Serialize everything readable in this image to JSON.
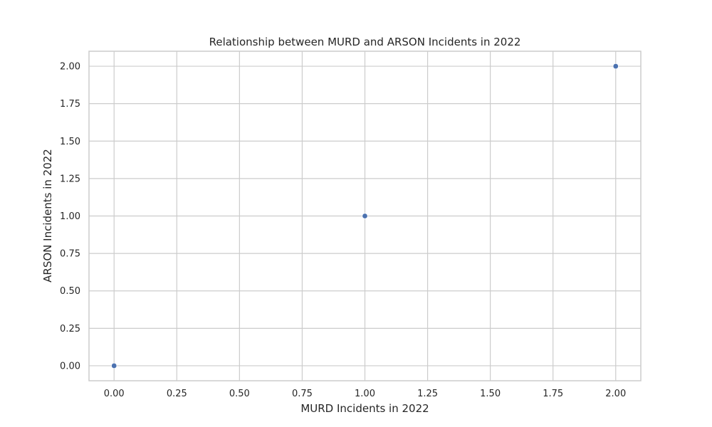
{
  "chart_data": {
    "type": "scatter",
    "title": "Relationship between MURD and ARSON Incidents in 2022",
    "xlabel": "MURD Incidents in 2022",
    "ylabel": "ARSON Incidents in 2022",
    "xlim": [
      -0.1,
      2.1
    ],
    "ylim": [
      -0.1,
      2.1
    ],
    "x_ticks": [
      0,
      0.25,
      0.5,
      0.75,
      1,
      1.25,
      1.5,
      1.75,
      2
    ],
    "x_tick_labels": [
      "0.00",
      "0.25",
      "0.50",
      "0.75",
      "1.00",
      "1.25",
      "1.50",
      "1.75",
      "2.00"
    ],
    "y_ticks": [
      0,
      0.25,
      0.5,
      0.75,
      1,
      1.25,
      1.5,
      1.75,
      2
    ],
    "y_tick_labels": [
      "0.00",
      "0.25",
      "0.50",
      "0.75",
      "1.00",
      "1.25",
      "1.50",
      "1.75",
      "2.00"
    ],
    "points": [
      {
        "x": 0,
        "y": 0
      },
      {
        "x": 1,
        "y": 1
      },
      {
        "x": 2,
        "y": 2
      }
    ],
    "grid": true,
    "colors": {
      "point": "#4c72b0",
      "grid": "#cccccc",
      "text": "#262626"
    }
  }
}
